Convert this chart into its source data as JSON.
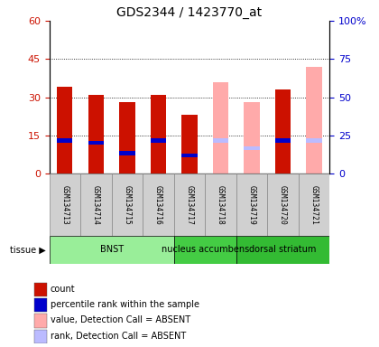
{
  "title": "GDS2344 / 1423770_at",
  "samples": [
    "GSM134713",
    "GSM134714",
    "GSM134715",
    "GSM134716",
    "GSM134717",
    "GSM134718",
    "GSM134719",
    "GSM134720",
    "GSM134721"
  ],
  "count_values": [
    34,
    31,
    28,
    31,
    23,
    0,
    0,
    33,
    0
  ],
  "rank_values": [
    13,
    12,
    8,
    13,
    7,
    0,
    0,
    13,
    0
  ],
  "absent_value": [
    0,
    0,
    0,
    0,
    0,
    36,
    28,
    0,
    42
  ],
  "absent_rank": [
    0,
    0,
    0,
    0,
    0,
    13,
    10,
    0,
    13
  ],
  "ylim_left": [
    0,
    60
  ],
  "ylim_right": [
    0,
    100
  ],
  "yticks_left": [
    0,
    15,
    30,
    45,
    60
  ],
  "ytick_labels_left": [
    "0",
    "15",
    "30",
    "45",
    "60"
  ],
  "yticks_right": [
    0,
    25,
    50,
    75,
    100
  ],
  "ytick_labels_right": [
    "0",
    "25",
    "50",
    "75",
    "100%"
  ],
  "tissue_groups": [
    {
      "label": "BNST",
      "start": 0,
      "end": 3,
      "color": "#99ee99"
    },
    {
      "label": "nucleus accumbens",
      "start": 4,
      "end": 5,
      "color": "#44cc44"
    },
    {
      "label": "dorsal striatum",
      "start": 6,
      "end": 8,
      "color": "#33bb33"
    }
  ],
  "color_red": "#cc1100",
  "color_blue": "#0000cc",
  "color_pink": "#ffaaaa",
  "color_lightblue": "#bbbbff",
  "bar_width": 0.5,
  "bg_color": "#ffffff",
  "tick_label_color_left": "#cc1100",
  "tick_label_color_right": "#0000cc",
  "legend_items": [
    {
      "color": "#cc1100",
      "label": "count"
    },
    {
      "color": "#0000cc",
      "label": "percentile rank within the sample"
    },
    {
      "color": "#ffaaaa",
      "label": "value, Detection Call = ABSENT"
    },
    {
      "color": "#bbbbff",
      "label": "rank, Detection Call = ABSENT"
    }
  ]
}
